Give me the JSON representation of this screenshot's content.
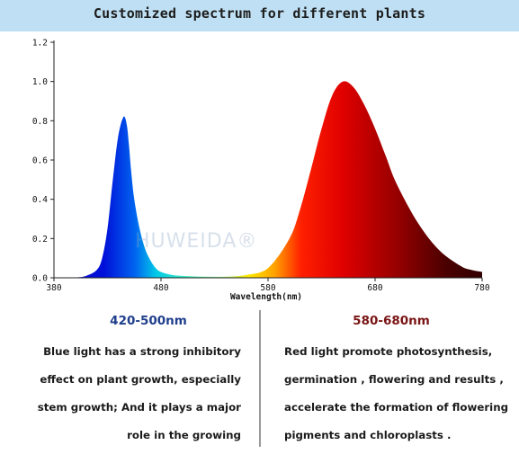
{
  "header": {
    "title": "Customized spectrum for different plants"
  },
  "watermark": "HUWEIDA®",
  "colors": {
    "header_bg": "#bfe0f4",
    "blue_heading": "#1f3e8c",
    "red_heading": "#7a1414"
  },
  "chart_data": {
    "type": "area",
    "title": "Customized spectrum for different plants",
    "xlabel": "Wavelength(nm)",
    "ylabel": "",
    "xlim": [
      380,
      780
    ],
    "ylim": [
      0,
      1.2
    ],
    "xticks": [
      380,
      480,
      580,
      680,
      780
    ],
    "yticks": [
      "0.0",
      "0.2",
      "0.4",
      "0.6",
      "0.8",
      "1.0",
      "1.2"
    ],
    "grid": false,
    "series": [
      {
        "x": [
          380,
          400,
          410,
          420,
          425,
          430,
          435,
          440,
          445,
          448,
          450,
          452,
          455,
          460,
          465,
          470,
          475,
          480,
          490,
          500,
          520,
          540,
          560
        ],
        "y": [
          0.0,
          0.002,
          0.01,
          0.04,
          0.1,
          0.25,
          0.5,
          0.72,
          0.82,
          0.78,
          0.68,
          0.55,
          0.4,
          0.25,
          0.15,
          0.09,
          0.05,
          0.03,
          0.015,
          0.01,
          0.006,
          0.005,
          0.004
        ]
      },
      {
        "x": [
          540,
          560,
          580,
          600,
          610,
          620,
          630,
          640,
          650,
          660,
          670,
          680,
          690,
          700,
          720,
          740,
          760,
          770,
          780
        ],
        "y": [
          0.005,
          0.015,
          0.05,
          0.2,
          0.35,
          0.55,
          0.76,
          0.93,
          1.0,
          0.97,
          0.88,
          0.76,
          0.62,
          0.48,
          0.28,
          0.14,
          0.06,
          0.04,
          0.03
        ]
      }
    ]
  },
  "left_panel": {
    "range": "420-500nm",
    "lines": [
      "Blue light has a strong inhibitory",
      "effect on plant growth, especially",
      "stem growth; And it plays a major",
      "role in the growing"
    ]
  },
  "right_panel": {
    "range": "580-680nm",
    "lines": [
      "Red light promote photosynthesis,",
      "germination , flowering and results ,",
      "accelerate the formation of flowering",
      "pigments and chloroplasts ."
    ]
  }
}
